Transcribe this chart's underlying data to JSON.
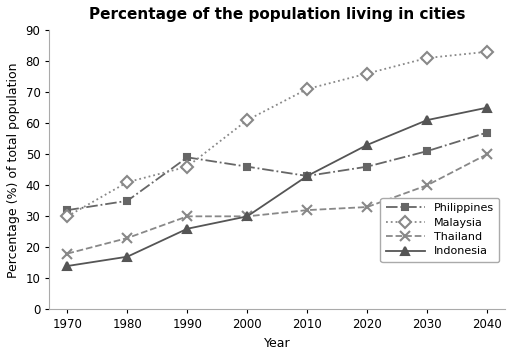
{
  "title": "Percentage of the population living in cities",
  "xlabel": "Year",
  "ylabel": "Percentage (%) of total population",
  "years": [
    1970,
    1980,
    1990,
    2000,
    2010,
    2020,
    2030,
    2040
  ],
  "series": [
    {
      "label": "Philippines",
      "values": [
        32,
        35,
        49,
        46,
        43,
        46,
        51,
        57
      ],
      "color": "#666666",
      "linestyle": "-.",
      "marker": "s",
      "markersize": 5,
      "markerfacecolor": "#666666",
      "markeredgecolor": "#666666"
    },
    {
      "label": "Malaysia",
      "values": [
        30,
        41,
        46,
        61,
        71,
        76,
        81,
        83
      ],
      "color": "#888888",
      "linestyle": ":",
      "marker": "D",
      "markersize": 6,
      "markerfacecolor": "white",
      "markeredgecolor": "#888888"
    },
    {
      "label": "Thailand",
      "values": [
        18,
        23,
        30,
        30,
        32,
        33,
        40,
        50
      ],
      "color": "#888888",
      "linestyle": "--",
      "marker": "x",
      "markersize": 7,
      "markerfacecolor": "#888888",
      "markeredgecolor": "#888888"
    },
    {
      "label": "Indonesia",
      "values": [
        14,
        17,
        26,
        30,
        43,
        53,
        61,
        65
      ],
      "color": "#555555",
      "linestyle": "-",
      "marker": "^",
      "markersize": 6,
      "markerfacecolor": "#555555",
      "markeredgecolor": "#555555"
    }
  ],
  "ylim": [
    0,
    90
  ],
  "yticks": [
    0,
    10,
    20,
    30,
    40,
    50,
    60,
    70,
    80,
    90
  ],
  "background_color": "#ffffff",
  "title_fontsize": 11,
  "axis_label_fontsize": 9,
  "tick_fontsize": 8.5,
  "linewidth": 1.3
}
